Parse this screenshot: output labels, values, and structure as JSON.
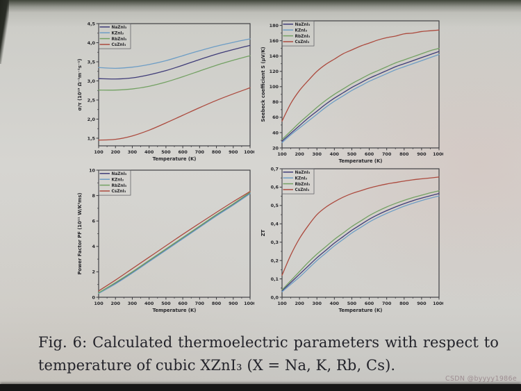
{
  "figure": {
    "caption_line1": "Fig. 6:  Calculated thermoelectric parameters with respect to",
    "caption_line2": "temperature of cubic XZnI₃  (X = Na, K, Rb, Cs).",
    "watermark": "CSDN @byyyy1986e"
  },
  "style": {
    "frame_color": "#3a3a3e",
    "text_color": "#26262a",
    "series_colors": {
      "NaZnI3": "#3f3c78",
      "KZnI3": "#6d9dc5",
      "RbZnI3": "#73a163",
      "CsZnI3": "#ac4a3e"
    }
  },
  "chart_data": [
    {
      "type": "line",
      "title": "",
      "xlabel": "Temperature (K)",
      "ylabel": "σ/τ (10¹⁹ Ω⁻¹m⁻¹s⁻¹)",
      "xlim": [
        100,
        1000
      ],
      "ylim": [
        1.3,
        4.5
      ],
      "xticks": [
        100,
        200,
        300,
        400,
        500,
        600,
        700,
        800,
        900,
        1000
      ],
      "yticks": [
        1.5,
        2.0,
        2.5,
        3.0,
        3.5,
        4.0,
        4.5
      ],
      "ytick_labels": [
        "1,5",
        "2,0",
        "2,5",
        "3,0",
        "3,5",
        "4,0",
        "4,5"
      ],
      "legend_position": "top-left",
      "grid": false,
      "x": [
        100,
        200,
        300,
        400,
        500,
        600,
        700,
        800,
        900,
        1000
      ],
      "series": [
        {
          "name": "NaZnI₃",
          "color": "#3f3c78",
          "values": [
            3.06,
            3.05,
            3.08,
            3.16,
            3.27,
            3.41,
            3.56,
            3.7,
            3.82,
            3.93
          ]
        },
        {
          "name": "KZnI₃",
          "color": "#6d9dc5",
          "values": [
            3.35,
            3.33,
            3.36,
            3.43,
            3.53,
            3.66,
            3.79,
            3.91,
            4.01,
            4.1
          ]
        },
        {
          "name": "RbZnI₃",
          "color": "#73a163",
          "values": [
            2.76,
            2.76,
            2.79,
            2.86,
            2.97,
            3.11,
            3.26,
            3.41,
            3.54,
            3.66
          ]
        },
        {
          "name": "CsZnI₃",
          "color": "#ac4a3e",
          "values": [
            1.45,
            1.47,
            1.56,
            1.71,
            1.9,
            2.1,
            2.3,
            2.49,
            2.66,
            2.82
          ]
        }
      ]
    },
    {
      "type": "line",
      "title": "",
      "xlabel": "Temperature (K)",
      "ylabel": "Seebeck coefficient S (μV/K)",
      "xlim": [
        100,
        1000
      ],
      "ylim": [
        20,
        186
      ],
      "xticks": [
        100,
        200,
        300,
        400,
        500,
        600,
        700,
        800,
        900,
        1000
      ],
      "yticks": [
        20,
        40,
        60,
        80,
        100,
        120,
        140,
        160,
        180
      ],
      "ytick_labels": [
        "20",
        "40",
        "60",
        "80",
        "100",
        "120",
        "140",
        "160",
        "180"
      ],
      "legend_position": "top-left",
      "grid": false,
      "x": [
        100,
        150,
        200,
        250,
        300,
        350,
        400,
        450,
        500,
        550,
        600,
        650,
        700,
        750,
        800,
        850,
        900,
        950,
        1000
      ],
      "series": [
        {
          "name": "NaZnI₃",
          "color": "#3f3c78",
          "values": [
            29,
            39,
            49,
            59,
            68,
            77,
            85,
            92,
            99,
            105,
            111,
            116,
            121,
            126,
            130,
            134,
            138,
            142,
            146
          ]
        },
        {
          "name": "KZnI₃",
          "color": "#6d9dc5",
          "values": [
            27,
            37,
            46,
            55,
            64,
            73,
            81,
            88,
            95,
            101,
            107,
            112,
            117,
            122,
            126,
            130,
            134,
            138,
            142
          ]
        },
        {
          "name": "RbZnI₃",
          "color": "#73a163",
          "values": [
            31,
            42,
            53,
            63,
            73,
            82,
            90,
            97,
            104,
            110,
            116,
            121,
            126,
            131,
            135,
            139,
            143,
            147,
            150
          ]
        },
        {
          "name": "CsZnI₃",
          "color": "#ac4a3e",
          "values": [
            55,
            78,
            95,
            108,
            120,
            129,
            136,
            143,
            148,
            153,
            157,
            161,
            164,
            166,
            169,
            170,
            172,
            173,
            174
          ]
        }
      ]
    },
    {
      "type": "line",
      "title": "",
      "xlabel": "Temperature (K)",
      "ylabel": "Power Factor PF (10¹¹ W/K²ms)",
      "xlim": [
        100,
        1000
      ],
      "ylim": [
        0,
        10
      ],
      "xticks": [
        100,
        200,
        300,
        400,
        500,
        600,
        700,
        800,
        900,
        1000
      ],
      "yticks": [
        0,
        2,
        4,
        6,
        8,
        10
      ],
      "ytick_labels": [
        "0",
        "2",
        "4",
        "6",
        "8",
        "10"
      ],
      "legend_position": "top-left",
      "grid": false,
      "x": [
        100,
        200,
        300,
        400,
        500,
        600,
        700,
        800,
        900,
        1000
      ],
      "series": [
        {
          "name": "NaZnI₃",
          "color": "#3f3c78",
          "values": [
            0.33,
            1.1,
            1.95,
            2.85,
            3.75,
            4.65,
            5.55,
            6.45,
            7.3,
            8.2
          ]
        },
        {
          "name": "KZnI₃",
          "color": "#6d9dc5",
          "values": [
            0.3,
            1.05,
            1.9,
            2.8,
            3.7,
            4.6,
            5.5,
            6.4,
            7.25,
            8.15
          ]
        },
        {
          "name": "RbZnI₃",
          "color": "#73a163",
          "values": [
            0.35,
            1.15,
            2.0,
            2.9,
            3.8,
            4.7,
            5.6,
            6.5,
            7.35,
            8.25
          ]
        },
        {
          "name": "CsZnI₃",
          "color": "#ac4a3e",
          "values": [
            0.5,
            1.35,
            2.25,
            3.15,
            4.05,
            4.95,
            5.82,
            6.68,
            7.52,
            8.32
          ]
        }
      ]
    },
    {
      "type": "line",
      "title": "",
      "xlabel": "Temperature (K)",
      "ylabel": "ZT",
      "xlim": [
        100,
        1000
      ],
      "ylim": [
        0,
        0.7
      ],
      "xticks": [
        100,
        200,
        300,
        400,
        500,
        600,
        700,
        800,
        900,
        1000
      ],
      "yticks": [
        0.0,
        0.1,
        0.2,
        0.3,
        0.4,
        0.5,
        0.6,
        0.7
      ],
      "ytick_labels": [
        "0,0",
        "0,1",
        "0,2",
        "0,3",
        "0,4",
        "0,5",
        "0,6",
        "0,7"
      ],
      "legend_position": "top-left",
      "grid": false,
      "x": [
        100,
        150,
        200,
        250,
        300,
        350,
        400,
        450,
        500,
        550,
        600,
        650,
        700,
        750,
        800,
        850,
        900,
        950,
        1000
      ],
      "series": [
        {
          "name": "NaZnI₃",
          "color": "#3f3c78",
          "values": [
            0.035,
            0.08,
            0.125,
            0.17,
            0.215,
            0.255,
            0.295,
            0.33,
            0.365,
            0.395,
            0.425,
            0.45,
            0.472,
            0.492,
            0.51,
            0.526,
            0.54,
            0.553,
            0.565
          ]
        },
        {
          "name": "KZnI₃",
          "color": "#6d9dc5",
          "values": [
            0.03,
            0.07,
            0.11,
            0.155,
            0.2,
            0.24,
            0.28,
            0.315,
            0.35,
            0.38,
            0.41,
            0.435,
            0.457,
            0.477,
            0.496,
            0.512,
            0.527,
            0.54,
            0.552
          ]
        },
        {
          "name": "RbZnI₃",
          "color": "#73a163",
          "values": [
            0.04,
            0.09,
            0.14,
            0.19,
            0.235,
            0.275,
            0.315,
            0.35,
            0.385,
            0.415,
            0.445,
            0.47,
            0.492,
            0.511,
            0.528,
            0.543,
            0.556,
            0.569,
            0.58
          ]
        },
        {
          "name": "CsZnI₃",
          "color": "#ac4a3e",
          "values": [
            0.12,
            0.23,
            0.32,
            0.39,
            0.45,
            0.49,
            0.52,
            0.545,
            0.565,
            0.58,
            0.595,
            0.607,
            0.617,
            0.625,
            0.633,
            0.64,
            0.645,
            0.65,
            0.655
          ]
        }
      ]
    }
  ]
}
